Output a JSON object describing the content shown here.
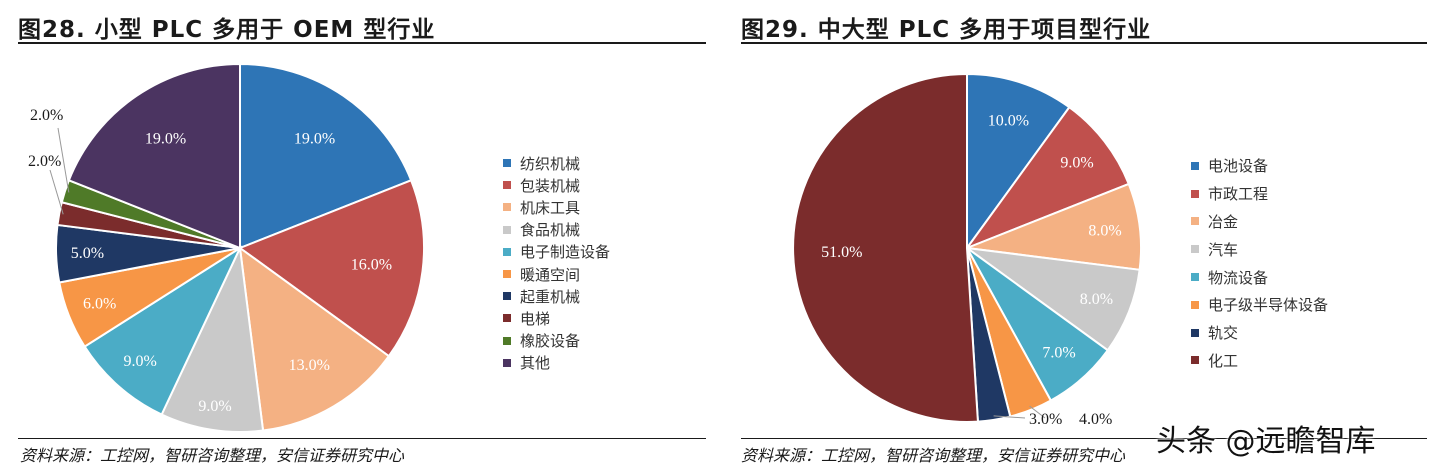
{
  "chart_data": [
    {
      "type": "pie",
      "title": "图28. 小型 PLC 多用于 OEM 型行业",
      "source": "资料来源：工控网，智研咨询整理，安信证券研究中心",
      "legend_position": "right",
      "slices": [
        {
          "label": "纺织机械",
          "value": 19.0,
          "value_label": "19.0%",
          "color": "#2e75b6"
        },
        {
          "label": "包装机械",
          "value": 16.0,
          "value_label": "16.0%",
          "color": "#c0504d"
        },
        {
          "label": "机床工具",
          "value": 13.0,
          "value_label": "13.0%",
          "color": "#f4b183"
        },
        {
          "label": "食品机械",
          "value": 9.0,
          "value_label": "9.0%",
          "color": "#c9c9c9"
        },
        {
          "label": "电子制造设备",
          "value": 9.0,
          "value_label": "9.0%",
          "color": "#4bacc6"
        },
        {
          "label": "暖通空间",
          "value": 6.0,
          "value_label": "6.0%",
          "color": "#f79646"
        },
        {
          "label": "起重机械",
          "value": 5.0,
          "value_label": "5.0%",
          "color": "#1f3864"
        },
        {
          "label": "电梯",
          "value": 2.0,
          "value_label": "2.0%",
          "color": "#7b2c2c"
        },
        {
          "label": "橡胶设备",
          "value": 2.0,
          "value_label": "2.0%",
          "color": "#4f7a28"
        },
        {
          "label": "其他",
          "value": 19.0,
          "value_label": "19.0%",
          "color": "#4b3461"
        }
      ]
    },
    {
      "type": "pie",
      "title": "图29. 中大型 PLC 多用于项目型行业",
      "source": "资料来源：工控网，智研咨询整理，安信证券研究中心",
      "legend_position": "right",
      "slices": [
        {
          "label": "电池设备",
          "value": 10.0,
          "value_label": "10.0%",
          "color": "#2e75b6"
        },
        {
          "label": "市政工程",
          "value": 9.0,
          "value_label": "9.0%",
          "color": "#c0504d"
        },
        {
          "label": "冶金",
          "value": 8.0,
          "value_label": "8.0%",
          "color": "#f4b183"
        },
        {
          "label": "汽车",
          "value": 8.0,
          "value_label": "8.0%",
          "color": "#c9c9c9"
        },
        {
          "label": "物流设备",
          "value": 7.0,
          "value_label": "7.0%",
          "color": "#4bacc6"
        },
        {
          "label": "电子级半导体设备",
          "value": 4.0,
          "value_label": "4.0%",
          "color": "#f79646"
        },
        {
          "label": "轨交",
          "value": 3.0,
          "value_label": "3.0%",
          "color": "#1f3864"
        },
        {
          "label": "化工",
          "value": 51.0,
          "value_label": "51.0%",
          "color": "#7b2c2c"
        }
      ]
    }
  ],
  "watermark": "头条 @远瞻智库"
}
